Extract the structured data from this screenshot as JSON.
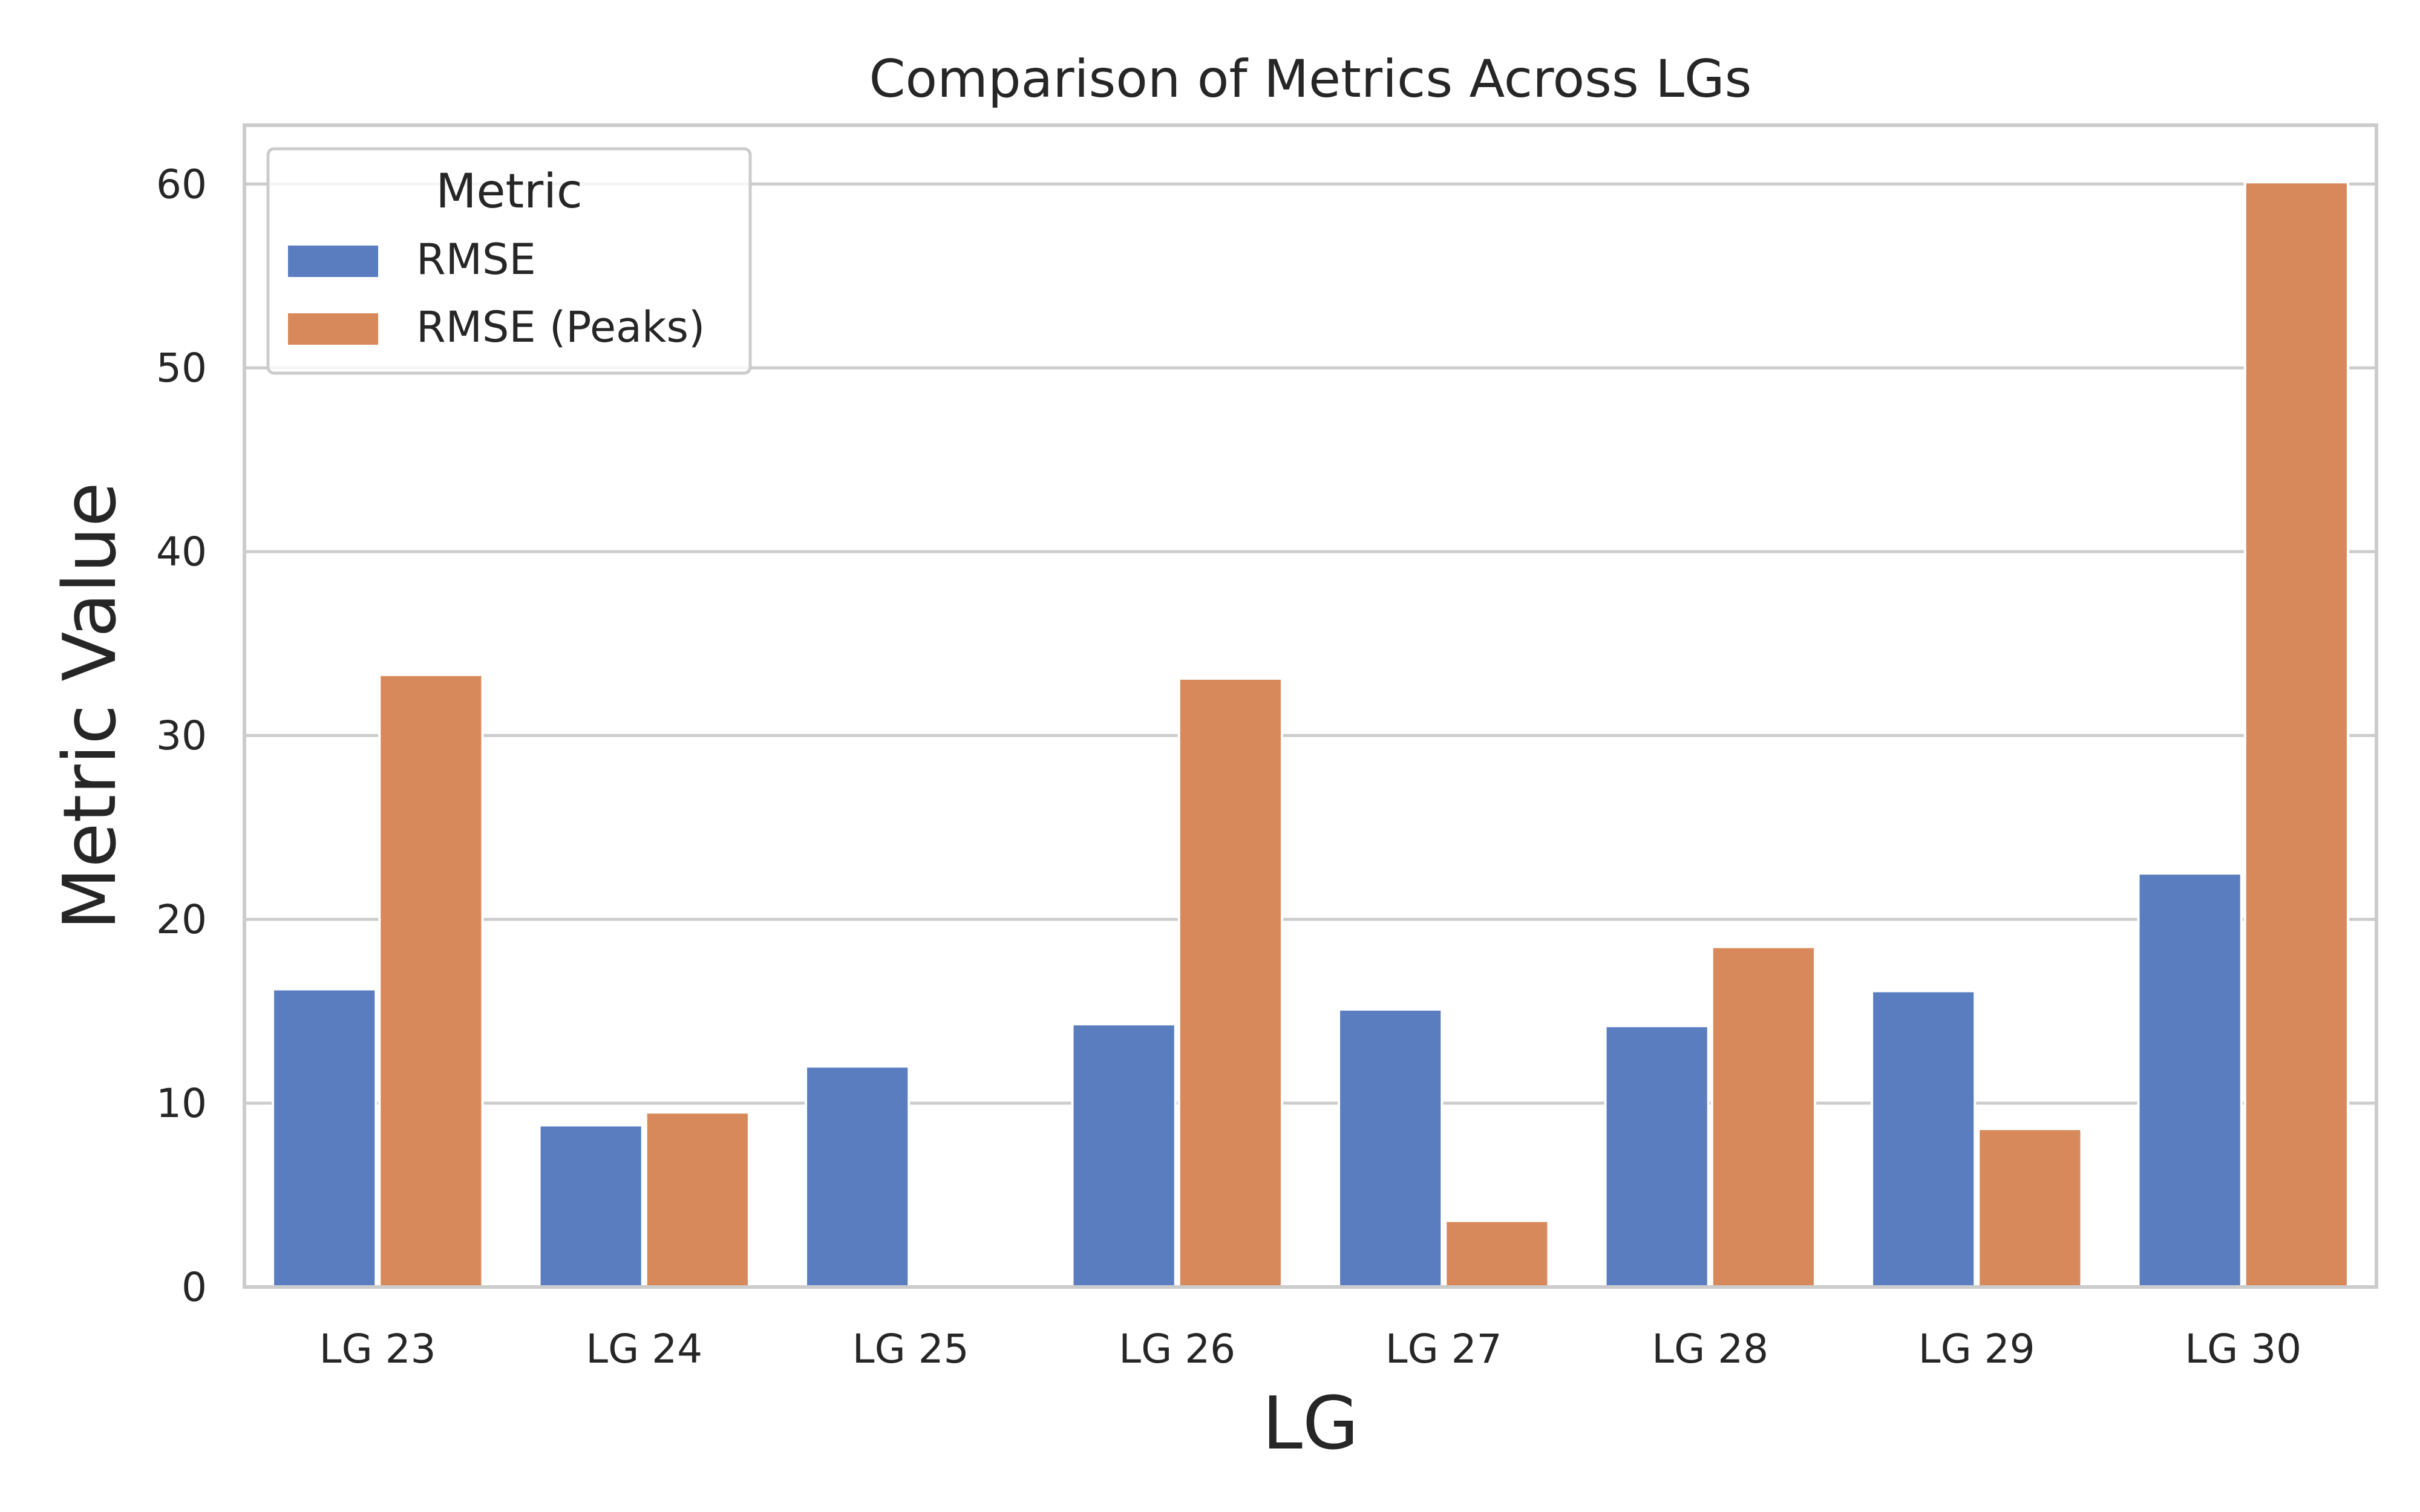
{
  "chart_data": {
    "type": "bar",
    "title": "Comparison of Metrics Across LGs",
    "xlabel": "LG",
    "ylabel": "Metric Value",
    "categories": [
      "LG 23",
      "LG 24",
      "LG 25",
      "LG 26",
      "LG 27",
      "LG 28",
      "LG 29",
      "LG 30"
    ],
    "series": [
      {
        "name": "RMSE",
        "color": "#5a7dc0",
        "values": [
          16.2,
          8.8,
          12.0,
          14.3,
          15.1,
          14.2,
          16.1,
          22.5
        ]
      },
      {
        "name": "RMSE (Peaks)",
        "color": "#d8895b",
        "values": [
          33.3,
          9.5,
          0,
          33.1,
          3.6,
          18.5,
          8.6,
          60.1
        ]
      }
    ],
    "ylim": [
      0,
      63.2
    ],
    "yticks": [
      0,
      10,
      20,
      30,
      40,
      50,
      60
    ],
    "grid": true,
    "legend": {
      "title": "Metric",
      "placement": "top-left"
    }
  }
}
